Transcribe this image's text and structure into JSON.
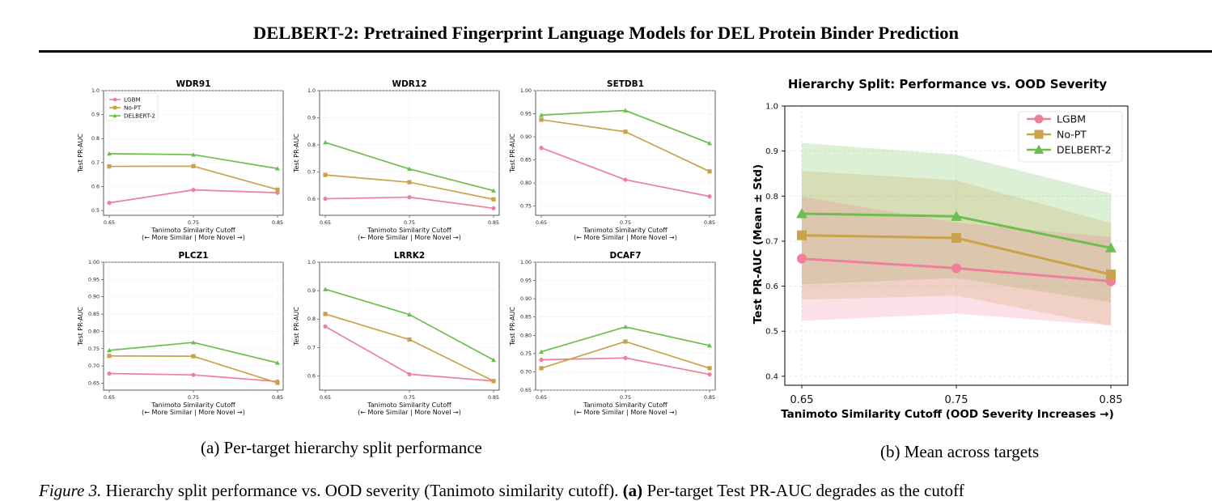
{
  "header": {
    "title": "DELBERT-2: Pretrained Fingerprint Language Models for DEL Protein Binder Prediction"
  },
  "figure": {
    "caption_label": "Figure 3.",
    "caption_text": " Hierarchy split performance vs. OOD severity (Tanimoto similarity cutoff). ",
    "caption_bold": "(a)",
    "caption_tail": " Per-target Test PR-AUC degrades as the cutoff",
    "subcaption_a": "(a) Per-target hierarchy split performance",
    "subcaption_b": "(b) Mean across targets"
  },
  "colors": {
    "LGBM": "#ee8099",
    "No-PT": "#c9a24a",
    "DELBERT-2": "#6cbf4f"
  },
  "chart_data": [
    {
      "type": "line",
      "title": "WDR91",
      "xlabel": "Tanimoto Similarity Cutoff",
      "xlabel2": "(← More Similar | More Novel →)",
      "ylabel": "Test PR-AUC",
      "x": [
        0.65,
        0.75,
        0.85
      ],
      "xticks": [
        "0.65",
        "0.75",
        "0.85"
      ],
      "ylim": [
        0.48,
        1.0
      ],
      "yticks": [
        0.5,
        0.6,
        0.7,
        0.8,
        0.9,
        1.0
      ],
      "ytick_labels": [
        "0.5",
        "0.6",
        "0.7",
        "0.8",
        "0.9",
        "1.0"
      ],
      "legend": [
        "LGBM",
        "No-PT",
        "DELBERT-2"
      ],
      "series": [
        {
          "name": "LGBM",
          "values": [
            0.532,
            0.586,
            0.574
          ]
        },
        {
          "name": "No-PT",
          "values": [
            0.684,
            0.685,
            0.587
          ]
        },
        {
          "name": "DELBERT-2",
          "values": [
            0.737,
            0.733,
            0.675
          ]
        }
      ]
    },
    {
      "type": "line",
      "title": "WDR12",
      "xlabel": "Tanimoto Similarity Cutoff",
      "xlabel2": "(← More Similar | More Novel →)",
      "ylabel": "Test PR-AUC",
      "x": [
        0.65,
        0.75,
        0.85
      ],
      "xticks": [
        "0.65",
        "0.75",
        "0.85"
      ],
      "ylim": [
        0.54,
        1.0
      ],
      "yticks": [
        0.6,
        0.7,
        0.8,
        0.9,
        1.0
      ],
      "ytick_labels": [
        "0.6",
        "0.7",
        "0.8",
        "0.9",
        "1.0"
      ],
      "series": [
        {
          "name": "LGBM",
          "values": [
            0.601,
            0.607,
            0.566
          ]
        },
        {
          "name": "No-PT",
          "values": [
            0.689,
            0.662,
            0.599
          ]
        },
        {
          "name": "DELBERT-2",
          "values": [
            0.809,
            0.711,
            0.631
          ]
        }
      ]
    },
    {
      "type": "line",
      "title": "SETDB1",
      "xlabel": "Tanimoto Similarity Cutoff",
      "xlabel2": "(← More Similar | More Novel →)",
      "ylabel": "Test PR-AUC",
      "x": [
        0.65,
        0.75,
        0.85
      ],
      "xticks": [
        "0.65",
        "0.75",
        "0.85"
      ],
      "ylim": [
        0.73,
        1.0
      ],
      "yticks": [
        0.75,
        0.8,
        0.85,
        0.9,
        0.95,
        1.0
      ],
      "ytick_labels": [
        "0.75",
        "0.80",
        "0.85",
        "0.90",
        "0.95",
        "1.00"
      ],
      "series": [
        {
          "name": "LGBM",
          "values": [
            0.876,
            0.807,
            0.771
          ]
        },
        {
          "name": "No-PT",
          "values": [
            0.937,
            0.911,
            0.825
          ]
        },
        {
          "name": "DELBERT-2",
          "values": [
            0.947,
            0.957,
            0.886
          ]
        }
      ]
    },
    {
      "type": "line",
      "title": "PLCZ1",
      "xlabel": "Tanimoto Similarity Cutoff",
      "xlabel2": "(← More Similar | More Novel →)",
      "ylabel": "Test PR-AUC",
      "x": [
        0.65,
        0.75,
        0.85
      ],
      "xticks": [
        "0.65",
        "0.75",
        "0.85"
      ],
      "ylim": [
        0.63,
        1.0
      ],
      "yticks": [
        0.65,
        0.7,
        0.75,
        0.8,
        0.85,
        0.9,
        0.95,
        1.0
      ],
      "ytick_labels": [
        "0.65",
        "0.70",
        "0.75",
        "0.80",
        "0.85",
        "0.90",
        "0.95",
        "1.00"
      ],
      "series": [
        {
          "name": "LGBM",
          "values": [
            0.678,
            0.674,
            0.655
          ]
        },
        {
          "name": "No-PT",
          "values": [
            0.729,
            0.728,
            0.651
          ]
        },
        {
          "name": "DELBERT-2",
          "values": [
            0.745,
            0.768,
            0.709
          ]
        }
      ]
    },
    {
      "type": "line",
      "title": "LRRK2",
      "xlabel": "Tanimoto Similarity Cutoff",
      "xlabel2": "(← More Similar | More Novel →)",
      "ylabel": "Test PR-AUC",
      "x": [
        0.65,
        0.75,
        0.85
      ],
      "xticks": [
        "0.65",
        "0.75",
        "0.85"
      ],
      "ylim": [
        0.55,
        1.0
      ],
      "yticks": [
        0.6,
        0.7,
        0.8,
        0.9,
        1.0
      ],
      "ytick_labels": [
        "0.6",
        "0.7",
        "0.8",
        "0.9",
        "1.0"
      ],
      "series": [
        {
          "name": "LGBM",
          "values": [
            0.774,
            0.606,
            0.582
          ]
        },
        {
          "name": "No-PT",
          "values": [
            0.818,
            0.728,
            0.582
          ]
        },
        {
          "name": "DELBERT-2",
          "values": [
            0.905,
            0.816,
            0.656
          ]
        }
      ]
    },
    {
      "type": "line",
      "title": "DCAF7",
      "xlabel": "Tanimoto Similarity Cutoff",
      "xlabel2": "(← More Similar | More Novel →)",
      "ylabel": "Test PR-AUC",
      "x": [
        0.65,
        0.75,
        0.85
      ],
      "xticks": [
        "0.65",
        "0.75",
        "0.85"
      ],
      "ylim": [
        0.65,
        1.0
      ],
      "yticks": [
        0.65,
        0.7,
        0.75,
        0.8,
        0.85,
        0.9,
        0.95,
        1.0
      ],
      "ytick_labels": [
        "0.65",
        "0.70",
        "0.75",
        "0.80",
        "0.85",
        "0.90",
        "0.95",
        "1.00"
      ],
      "series": [
        {
          "name": "LGBM",
          "values": [
            0.733,
            0.738,
            0.693
          ]
        },
        {
          "name": "No-PT",
          "values": [
            0.71,
            0.783,
            0.71
          ]
        },
        {
          "name": "DELBERT-2",
          "values": [
            0.755,
            0.823,
            0.772
          ]
        }
      ]
    },
    {
      "type": "area",
      "title": "Hierarchy Split: Performance vs. OOD Severity",
      "xlabel": "Tanimoto Similarity Cutoff (OOD Severity Increases →)",
      "ylabel": "Test PR-AUC (Mean ± Std)",
      "x": [
        0.65,
        0.75,
        0.85
      ],
      "xticks": [
        "0.65",
        "0.75",
        "0.85"
      ],
      "ylim": [
        0.38,
        1.0
      ],
      "yticks": [
        0.4,
        0.5,
        0.6,
        0.7,
        0.8,
        0.9,
        1.0
      ],
      "ytick_labels": [
        "0.4",
        "0.5",
        "0.6",
        "0.7",
        "0.8",
        "0.9",
        "1.0"
      ],
      "legend": [
        "LGBM",
        "No-PT",
        "DELBERT-2"
      ],
      "legend_position": "top-right",
      "grid": true,
      "series": [
        {
          "name": "LGBM",
          "values": [
            0.661,
            0.64,
            0.611
          ],
          "std": [
            0.138,
            0.101,
            0.098
          ]
        },
        {
          "name": "No-PT",
          "values": [
            0.713,
            0.707,
            0.626
          ],
          "std": [
            0.143,
            0.128,
            0.114
          ]
        },
        {
          "name": "DELBERT-2",
          "values": [
            0.761,
            0.755,
            0.685
          ],
          "std": [
            0.157,
            0.137,
            0.121
          ]
        }
      ]
    }
  ]
}
